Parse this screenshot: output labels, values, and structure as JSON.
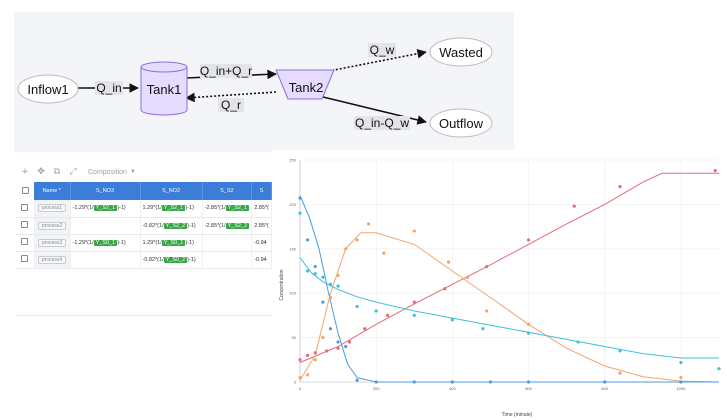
{
  "diagram": {
    "nodes": {
      "inflow": "Inflow1",
      "tank1": "Tank1",
      "tank2": "Tank2",
      "wasted": "Wasted",
      "outflow": "Outflow"
    },
    "edges": {
      "q_in": "Q_in",
      "q_in_plus_q_r": "Q_in+Q_r",
      "q_r": "Q_r",
      "q_w": "Q_w",
      "q_in_minus_q_w": "Q_in-Q_w"
    },
    "colors": {
      "tank_fill": "#e6dcff",
      "tank_stroke": "#8a6fd6",
      "background": "#f3f5f8"
    }
  },
  "toolbar": {
    "icons": [
      "plus-icon",
      "move-icon",
      "copy-icon",
      "expand-icon"
    ],
    "select_value": "Composition"
  },
  "table": {
    "headers": [
      "Name *",
      "S_NO3",
      "S_NO2",
      "S_S2",
      "S"
    ],
    "rows": [
      {
        "name": "process1",
        "c1_pre": "-1.29*(1/",
        "c1_tag": "Y_S2_1",
        "c1_post": ")-1)",
        "c2_pre": "1.29*(1/",
        "c2_tag": "Y_S2_1",
        "c2_post": ")-1)",
        "c3_pre": "-2.85*(1/",
        "c3_tag": "Y_S2_1",
        "c3_post": "",
        "c4": "2.85*("
      },
      {
        "name": "process2",
        "c1_pre": "",
        "c1_tag": "",
        "c1_post": "",
        "c2_pre": "-0.82*(1/",
        "c2_tag": "Y_S2_2",
        "c2_post": ")-1)",
        "c3_pre": "-2.85*(1/",
        "c3_tag": "Y_S2_2",
        "c3_post": "",
        "c4": "2.85*("
      },
      {
        "name": "process3",
        "c1_pre": "-1.29*(1/",
        "c1_tag": "Y_S0_1",
        "c1_post": ")-1)",
        "c2_pre": "1.29*(1/",
        "c2_tag": "Y_S0_1",
        "c2_post": ")-1)",
        "c3_pre": "",
        "c3_tag": "",
        "c3_post": "",
        "c4": "-0.94"
      },
      {
        "name": "process4",
        "c1_pre": "",
        "c1_tag": "",
        "c1_post": "",
        "c2_pre": "-0.82*(1/",
        "c2_tag": "Y_S0_2",
        "c2_post": ")-1)",
        "c3_pre": "",
        "c3_tag": "",
        "c3_post": "",
        "c4": "-0.94"
      }
    ],
    "colors": {
      "header_bg": "#3b7dd8",
      "tag_bg": "#3aa648"
    }
  },
  "chart_data": {
    "type": "scatter",
    "xlabel": "Time (minute)",
    "ylabel": "Concentration",
    "xlim": [
      0,
      1100
    ],
    "ylim": [
      0,
      250
    ],
    "xticks": [
      0,
      200,
      400,
      600,
      800,
      1000
    ],
    "yticks": [
      0,
      50,
      100,
      150,
      200,
      250
    ],
    "series": [
      {
        "color": "#e36b78",
        "points": [
          [
            0,
            25
          ],
          [
            20,
            30
          ],
          [
            40,
            33
          ],
          [
            70,
            35
          ],
          [
            100,
            38
          ],
          [
            130,
            45
          ],
          [
            170,
            60
          ],
          [
            230,
            75
          ],
          [
            300,
            90
          ],
          [
            380,
            105
          ],
          [
            440,
            118
          ],
          [
            490,
            130
          ],
          [
            600,
            160
          ],
          [
            720,
            198
          ],
          [
            840,
            220
          ],
          [
            1090,
            238
          ]
        ],
        "fit": [
          [
            0,
            22
          ],
          [
            100,
            40
          ],
          [
            200,
            65
          ],
          [
            300,
            88
          ],
          [
            400,
            110
          ],
          [
            500,
            132
          ],
          [
            600,
            155
          ],
          [
            700,
            178
          ],
          [
            800,
            200
          ],
          [
            900,
            225
          ],
          [
            950,
            235
          ],
          [
            1100,
            235
          ]
        ]
      },
      {
        "color": "#f2a56b",
        "points": [
          [
            0,
            5
          ],
          [
            20,
            8
          ],
          [
            40,
            25
          ],
          [
            60,
            50
          ],
          [
            80,
            95
          ],
          [
            100,
            120
          ],
          [
            120,
            150
          ],
          [
            150,
            160
          ],
          [
            180,
            178
          ],
          [
            220,
            145
          ],
          [
            300,
            170
          ],
          [
            390,
            135
          ],
          [
            440,
            118
          ],
          [
            490,
            80
          ],
          [
            600,
            65
          ],
          [
            840,
            10
          ],
          [
            1000,
            5
          ]
        ],
        "fit": [
          [
            0,
            2
          ],
          [
            40,
            30
          ],
          [
            80,
            100
          ],
          [
            120,
            150
          ],
          [
            160,
            168
          ],
          [
            200,
            168
          ],
          [
            300,
            155
          ],
          [
            400,
            125
          ],
          [
            500,
            95
          ],
          [
            600,
            65
          ],
          [
            700,
            38
          ],
          [
            800,
            18
          ],
          [
            900,
            6
          ],
          [
            1000,
            1
          ],
          [
            1100,
            0
          ]
        ]
      },
      {
        "color": "#3fbfd8",
        "points": [
          [
            0,
            190
          ],
          [
            20,
            125
          ],
          [
            40,
            122
          ],
          [
            60,
            118
          ],
          [
            80,
            110
          ],
          [
            100,
            108
          ],
          [
            150,
            85
          ],
          [
            200,
            80
          ],
          [
            300,
            75
          ],
          [
            400,
            70
          ],
          [
            480,
            60
          ],
          [
            600,
            55
          ],
          [
            730,
            45
          ],
          [
            840,
            35
          ],
          [
            1000,
            22
          ],
          [
            1100,
            15
          ]
        ],
        "fit": [
          [
            0,
            140
          ],
          [
            30,
            123
          ],
          [
            60,
            113
          ],
          [
            100,
            104
          ],
          [
            150,
            96
          ],
          [
            200,
            90
          ],
          [
            300,
            80
          ],
          [
            400,
            72
          ],
          [
            500,
            64
          ],
          [
            600,
            56
          ],
          [
            700,
            48
          ],
          [
            800,
            40
          ],
          [
            900,
            32
          ],
          [
            1000,
            27
          ],
          [
            1100,
            27
          ]
        ]
      },
      {
        "color": "#4a9be0",
        "points": [
          [
            0,
            207
          ],
          [
            20,
            160
          ],
          [
            40,
            130
          ],
          [
            60,
            90
          ],
          [
            80,
            60
          ],
          [
            100,
            45
          ],
          [
            120,
            40
          ],
          [
            150,
            2
          ],
          [
            200,
            0
          ],
          [
            300,
            0
          ],
          [
            400,
            0
          ],
          [
            500,
            0
          ],
          [
            600,
            0
          ],
          [
            800,
            0
          ],
          [
            1000,
            0
          ]
        ],
        "fit": [
          [
            0,
            210
          ],
          [
            25,
            185
          ],
          [
            50,
            150
          ],
          [
            75,
            100
          ],
          [
            100,
            55
          ],
          [
            125,
            20
          ],
          [
            150,
            5
          ],
          [
            200,
            0
          ],
          [
            1100,
            0
          ]
        ]
      }
    ]
  }
}
